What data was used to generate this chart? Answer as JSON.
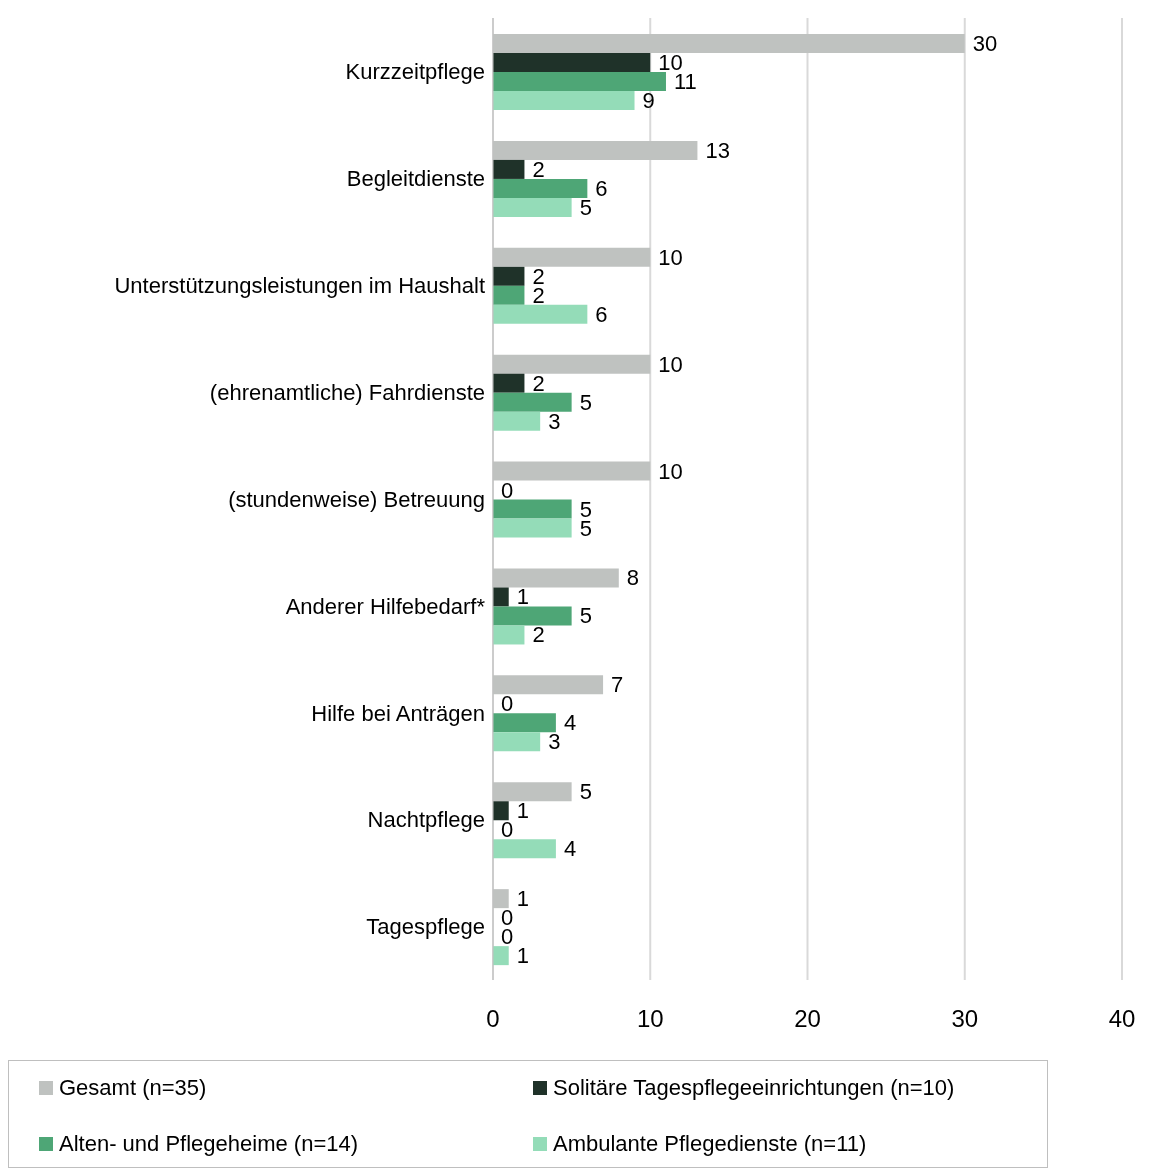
{
  "chart_data": {
    "type": "bar",
    "orientation": "horizontal",
    "categories": [
      "Kurzzeitpflege",
      "Begleitdienste",
      "Unterstützungsleistungen im Haushalt",
      "(ehrenamtliche) Fahrdienste",
      "(stundenweise) Betreuung",
      "Anderer Hilfebedarf*",
      "Hilfe bei Anträgen",
      "Nachtpflege",
      "Tagespflege"
    ],
    "series": [
      {
        "name": "Gesamt (n=35)",
        "color": "#bfc2c0",
        "values": [
          30,
          13,
          10,
          10,
          10,
          8,
          7,
          5,
          1
        ]
      },
      {
        "name": "Solitäre Tagespflegeeinrichtungen (n=10)",
        "color": "#1f3229",
        "values": [
          10,
          2,
          2,
          2,
          0,
          1,
          0,
          1,
          0
        ]
      },
      {
        "name": "Alten- und Pflegeheime (n=14)",
        "color": "#4ea676",
        "values": [
          11,
          6,
          2,
          5,
          5,
          5,
          4,
          0,
          0
        ]
      },
      {
        "name": "Ambulante Pflegedienste (n=11)",
        "color": "#94dcb8",
        "values": [
          9,
          5,
          6,
          3,
          5,
          2,
          3,
          4,
          1
        ]
      }
    ],
    "xlim": [
      0,
      40
    ],
    "xticks": [
      0,
      10,
      20,
      30,
      40
    ],
    "grid": "x",
    "legend": "bottom",
    "data_labels": true
  }
}
